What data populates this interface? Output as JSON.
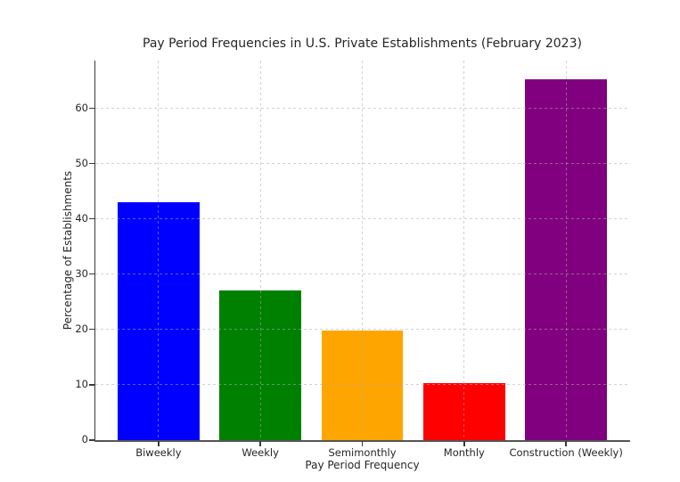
{
  "chart_data": {
    "type": "bar",
    "title": "Pay Period Frequencies in U.S. Private Establishments (February 2023)",
    "xlabel": "Pay Period Frequency",
    "ylabel": "Percentage of Establishments",
    "categories": [
      "Biweekly",
      "Weekly",
      "Semimonthly",
      "Monthly",
      "Construction (Weekly)"
    ],
    "values": [
      43.0,
      27.0,
      19.8,
      10.3,
      65.3
    ],
    "bar_colors": [
      "#0000ff",
      "#008000",
      "#ffa500",
      "#ff0000",
      "#800080"
    ],
    "yticks": [
      0,
      10,
      20,
      30,
      40,
      50,
      60
    ],
    "ylim": [
      0,
      68.6
    ],
    "xlim": [
      -0.62,
      4.62
    ],
    "bar_width_units": 0.8,
    "grid": "dashed, horizontal at each y tick and vertical at each category center, drawn over bars",
    "legend_position": "none",
    "background_color": "#ffffff",
    "spine_color": "#3a3a3a",
    "text_color": "#262626"
  }
}
